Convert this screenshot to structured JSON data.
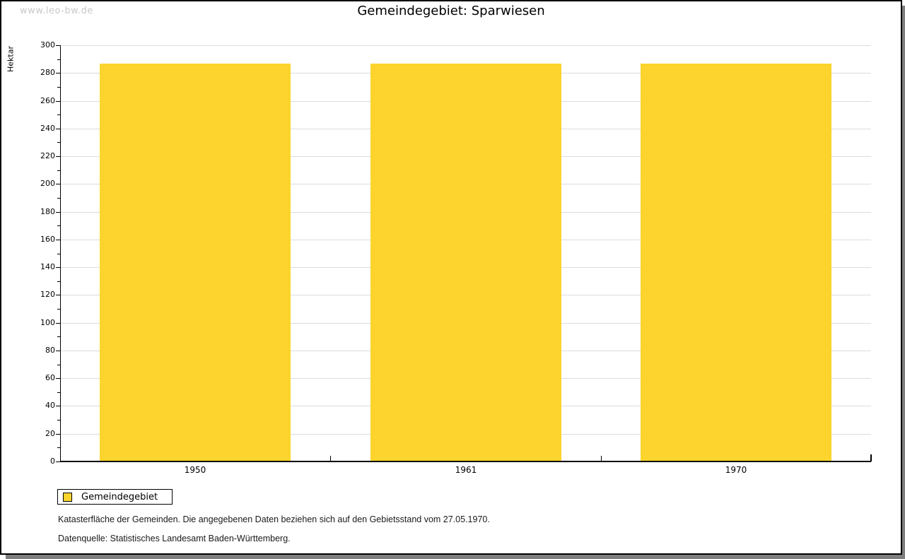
{
  "watermark": "www.leo-bw.de",
  "header": {
    "title": "Gemeindegebiet: Sparwiesen"
  },
  "chart_data": {
    "type": "bar",
    "title": "Gemeindegebiet: Sparwiesen",
    "categories": [
      "1950",
      "1961",
      "1970"
    ],
    "series": [
      {
        "name": "Gemeindegebiet",
        "values": [
          287,
          287,
          287
        ],
        "color": "#FCD42D"
      }
    ],
    "xlabel": "",
    "ylabel": "Hektar",
    "ylim": [
      0,
      300
    ],
    "ytick_major_step": 20,
    "ytick_minor_step": 10,
    "grid": true,
    "legend_position": "bottom-left"
  },
  "legend": {
    "entries": [
      {
        "label": "Gemeindegebiet",
        "color": "#FCD42D"
      }
    ]
  },
  "footnotes": {
    "line1": "Katasterfläche der Gemeinden. Die angegebenen Daten beziehen sich auf den Gebietsstand vom 27.05.1970.",
    "line2": "Datenquelle: Statistisches Landesamt Baden-Württemberg."
  },
  "colors": {
    "bar": "#FCD42D",
    "grid": "#DCDCDC",
    "axis": "#000000",
    "watermark": "#C9C9C9",
    "frame_shadow": "#7F7F7F"
  }
}
